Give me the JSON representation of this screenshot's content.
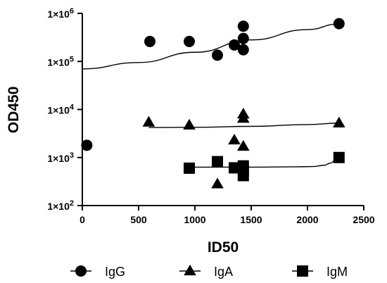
{
  "chart_data": {
    "type": "scatter",
    "xlabel": "ID50",
    "ylabel": "OD450",
    "xlim": [
      0,
      2500
    ],
    "ylim": [
      100,
      1000000
    ],
    "yscale": "log",
    "x_ticks": [
      0,
      500,
      1000,
      1500,
      2000,
      2500
    ],
    "x_tick_labels": [
      "0",
      "500",
      "1000",
      "1500",
      "2000",
      "2500"
    ],
    "y_ticks": [
      100,
      1000,
      10000,
      100000,
      1000000
    ],
    "y_tick_labels": [
      {
        "base": "1×10",
        "exp": "2"
      },
      {
        "base": "1×10",
        "exp": "3"
      },
      {
        "base": "1×10",
        "exp": "4"
      },
      {
        "base": "1×10",
        "exp": "5"
      },
      {
        "base": "1×10",
        "exp": "6"
      }
    ],
    "grid": false,
    "legend_position": "bottom",
    "series": [
      {
        "name": "IgG",
        "marker": "circle",
        "color": "#000000",
        "x": [
          40,
          600,
          950,
          1200,
          1350,
          1430,
          1430,
          1430,
          2280
        ],
        "y": [
          1800,
          260000,
          260000,
          135000,
          220000,
          540000,
          300000,
          175000,
          610000
        ],
        "fit_x": [
          0,
          500,
          1000,
          1500,
          2000,
          2280
        ],
        "fit_y": [
          70000,
          95000,
          155000,
          280000,
          460000,
          600000
        ]
      },
      {
        "name": "IgA",
        "marker": "triangle",
        "color": "#000000",
        "x": [
          590,
          950,
          1200,
          1350,
          1430,
          1430,
          1430,
          2280
        ],
        "y": [
          5400,
          4700,
          280,
          2300,
          8000,
          6500,
          1700,
          5200
        ],
        "fit_x": [
          590,
          1000,
          1500,
          2000,
          2280
        ],
        "fit_y": [
          4200,
          4250,
          4450,
          4850,
          5200
        ]
      },
      {
        "name": "IgM",
        "marker": "square",
        "color": "#000000",
        "x": [
          950,
          1200,
          1350,
          1430,
          1430,
          1430,
          2280
        ],
        "y": [
          600,
          820,
          610,
          670,
          560,
          420,
          1000
        ],
        "fit_x": [
          950,
          1500,
          1900,
          2050,
          2150,
          2200,
          2250,
          2280
        ],
        "fit_y": [
          630,
          630,
          640,
          650,
          690,
          760,
          880,
          1000
        ]
      }
    ]
  }
}
